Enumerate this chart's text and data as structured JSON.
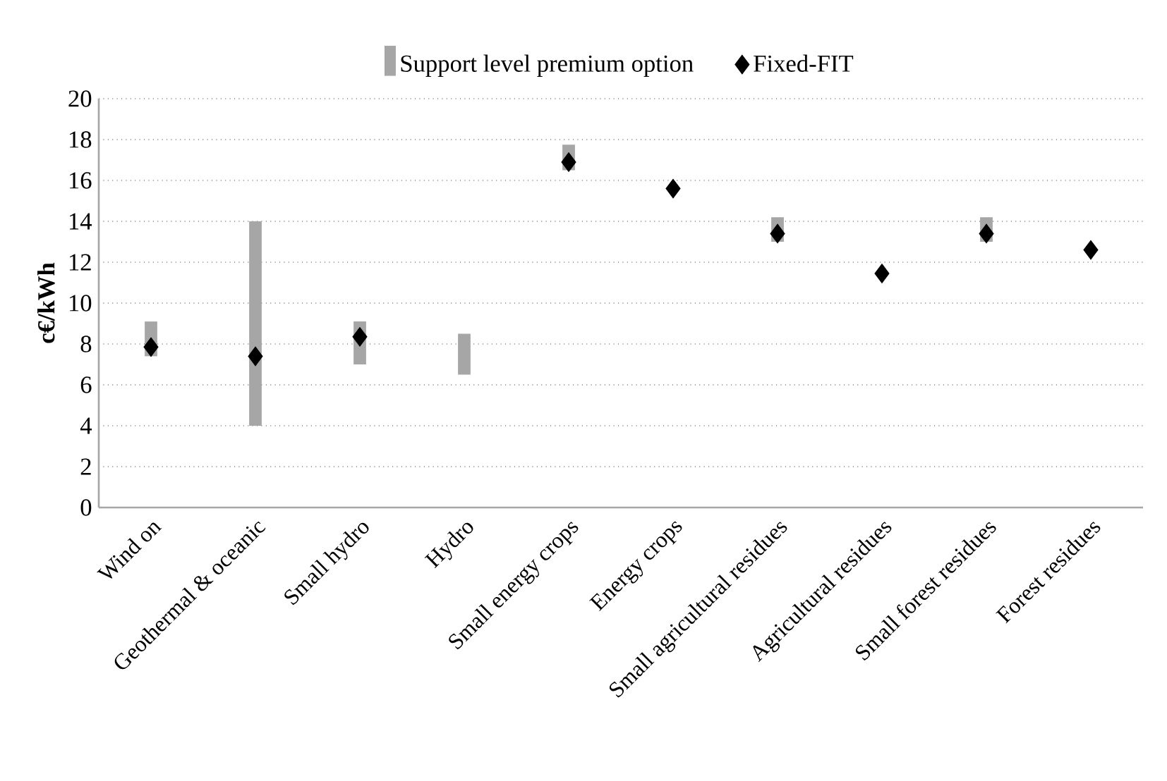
{
  "chart_data": {
    "type": "bar",
    "ylabel": "c€/kWh",
    "categories": [
      "Wind on",
      "Geothermal & oceanic",
      "Small hydro",
      "Hydro",
      "Small energy crops",
      "Energy crops",
      "Small agricultural residues",
      "Agricultural residues",
      "Small forest residues",
      "Forest residues"
    ],
    "series": [
      {
        "name": "Support level premium option",
        "color": "#a6a6a6",
        "base": [
          7.4,
          4,
          7,
          6.5,
          16.5,
          null,
          13,
          null,
          13,
          null
        ],
        "values": [
          1.7,
          10,
          2.1,
          2,
          1.25,
          null,
          1.2,
          null,
          1.2,
          null
        ]
      },
      {
        "name": "Fixed-FIT",
        "type": "scatter",
        "color": "#000000",
        "marker": "diamond",
        "values": [
          7.85,
          7.4,
          8.35,
          null,
          16.9,
          15.6,
          13.4,
          11.45,
          13.4,
          12.6
        ]
      }
    ],
    "ylim": [
      0,
      20
    ],
    "yticks": [
      0,
      2,
      4,
      6,
      8,
      10,
      12,
      14,
      16,
      18,
      20
    ],
    "grid": "y",
    "legend": "top"
  }
}
